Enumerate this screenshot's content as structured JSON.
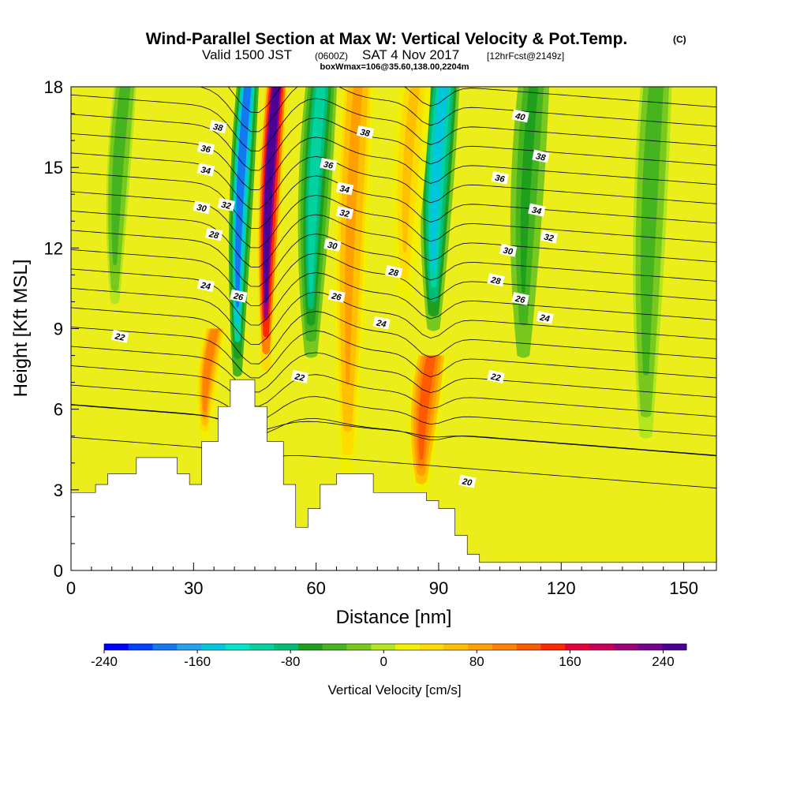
{
  "title": {
    "main": "Wind-Parallel Section at Max W: Vertical Velocity & Pot.Temp.",
    "tag": "(C)",
    "valid_a": "Valid 1500 JST",
    "valid_small1": "(0600Z)",
    "valid_b": "SAT 4 Nov 2017",
    "valid_small2": "[12hrFcst@2149z]",
    "box": "boxWmax=106@35.60,138.00,2204m"
  },
  "colors": {
    "background_field": "#ecee1c",
    "terrain": "#ffffff",
    "contour": "#000000",
    "palette": [
      "#0000ff",
      "#0040ff",
      "#1478f0",
      "#28a0f0",
      "#00c8dc",
      "#00e6c8",
      "#00d2a0",
      "#00be78",
      "#1ea01e",
      "#46b41e",
      "#78c81e",
      "#b4e61e",
      "#f0f000",
      "#ffdc00",
      "#ffc000",
      "#ffa000",
      "#ff8200",
      "#ff5a00",
      "#ff2800",
      "#e6003c",
      "#c8005a",
      "#a00078",
      "#78008c",
      "#4b0096"
    ]
  },
  "chart_data": {
    "type": "heatmap",
    "subtype": "vertical cross-section with contours",
    "xlabel": "Distance [nm]",
    "ylabel": "Height [Kft MSL]",
    "xlim": [
      0,
      158
    ],
    "ylim": [
      0,
      18
    ],
    "xticks": [
      0,
      30,
      60,
      90,
      120,
      150
    ],
    "yticks": [
      0,
      3,
      6,
      9,
      12,
      15,
      18
    ],
    "colorbar": {
      "label": "Vertical Velocity [cm/s]",
      "range": [
        -240,
        260
      ],
      "ticks": [
        -240,
        -160,
        -80,
        0,
        80,
        160,
        240
      ]
    },
    "terrain_profile": [
      [
        0,
        2.9
      ],
      [
        6,
        2.9
      ],
      [
        6,
        3.2
      ],
      [
        9,
        3.2
      ],
      [
        9,
        3.6
      ],
      [
        16,
        3.6
      ],
      [
        16,
        4.2
      ],
      [
        26,
        4.2
      ],
      [
        26,
        3.6
      ],
      [
        29,
        3.6
      ],
      [
        29,
        3.2
      ],
      [
        32,
        3.2
      ],
      [
        32,
        4.8
      ],
      [
        36,
        4.8
      ],
      [
        36,
        6.1
      ],
      [
        39,
        6.1
      ],
      [
        39,
        7.1
      ],
      [
        45,
        7.1
      ],
      [
        45,
        6.1
      ],
      [
        48,
        6.1
      ],
      [
        48,
        4.8
      ],
      [
        52,
        4.8
      ],
      [
        52,
        3.2
      ],
      [
        55,
        3.2
      ],
      [
        55,
        1.6
      ],
      [
        58,
        1.6
      ],
      [
        58,
        2.3
      ],
      [
        61,
        2.3
      ],
      [
        61,
        3.2
      ],
      [
        65,
        3.2
      ],
      [
        65,
        3.6
      ],
      [
        74,
        3.6
      ],
      [
        74,
        2.9
      ],
      [
        87,
        2.9
      ],
      [
        87,
        2.6
      ],
      [
        90,
        2.6
      ],
      [
        90,
        2.3
      ],
      [
        94,
        2.3
      ],
      [
        94,
        1.3
      ],
      [
        97,
        1.3
      ],
      [
        97,
        0.6
      ],
      [
        100,
        0.6
      ],
      [
        100,
        0.3
      ],
      [
        158,
        0.3
      ]
    ],
    "velocity_features": [
      {
        "type": "updraft",
        "x_center": 49,
        "top": 18,
        "bottom": 7.5,
        "peak": 250
      },
      {
        "type": "downdraft",
        "x_center": 42,
        "top": 18,
        "bottom": 7.3,
        "peak": -180
      },
      {
        "type": "updraft",
        "x_center": 34,
        "top": 9,
        "bottom": 5,
        "peak": 110
      },
      {
        "type": "updraft",
        "x_center": 69,
        "top": 18,
        "bottom": 3.5,
        "peak": 90
      },
      {
        "type": "downdraft",
        "x_center": 60,
        "top": 18,
        "bottom": 8,
        "peak": -100
      },
      {
        "type": "downdraft",
        "x_center": 90,
        "top": 18,
        "bottom": 9,
        "peak": -140
      },
      {
        "type": "updraft",
        "x_center": 87,
        "top": 8,
        "bottom": 3,
        "peak": 130
      },
      {
        "type": "updraft",
        "x_center": 83,
        "top": 18,
        "bottom": 10,
        "peak": 60
      },
      {
        "type": "downdraft",
        "x_center": 12,
        "top": 18,
        "bottom": 10,
        "peak": -40
      },
      {
        "type": "downdraft",
        "x_center": 112,
        "top": 18,
        "bottom": 8,
        "peak": -60
      },
      {
        "type": "downdraft",
        "x_center": 142,
        "top": 18,
        "bottom": 5,
        "peak": -40
      }
    ],
    "contour_labels": [
      {
        "text": "40",
        "x": 110,
        "y": 16.9
      },
      {
        "text": "38",
        "x": 72,
        "y": 16.3
      },
      {
        "text": "38",
        "x": 115,
        "y": 15.4
      },
      {
        "text": "38",
        "x": 36,
        "y": 16.5
      },
      {
        "text": "36",
        "x": 33,
        "y": 15.7
      },
      {
        "text": "36",
        "x": 63,
        "y": 15.1
      },
      {
        "text": "36",
        "x": 105,
        "y": 14.6
      },
      {
        "text": "34",
        "x": 33,
        "y": 14.9
      },
      {
        "text": "34",
        "x": 67,
        "y": 14.2
      },
      {
        "text": "34",
        "x": 114,
        "y": 13.4
      },
      {
        "text": "32",
        "x": 38,
        "y": 13.6
      },
      {
        "text": "32",
        "x": 67,
        "y": 13.3
      },
      {
        "text": "32",
        "x": 117,
        "y": 12.4
      },
      {
        "text": "30",
        "x": 32,
        "y": 13.5
      },
      {
        "text": "30",
        "x": 64,
        "y": 12.1
      },
      {
        "text": "30",
        "x": 107,
        "y": 11.9
      },
      {
        "text": "28",
        "x": 35,
        "y": 12.5
      },
      {
        "text": "28",
        "x": 79,
        "y": 11.1
      },
      {
        "text": "28",
        "x": 104,
        "y": 10.8
      },
      {
        "text": "26",
        "x": 41,
        "y": 10.2
      },
      {
        "text": "26",
        "x": 65,
        "y": 10.2
      },
      {
        "text": "26",
        "x": 110,
        "y": 10.1
      },
      {
        "text": "24",
        "x": 33,
        "y": 10.6
      },
      {
        "text": "24",
        "x": 76,
        "y": 9.2
      },
      {
        "text": "24",
        "x": 116,
        "y": 9.4
      },
      {
        "text": "22",
        "x": 12,
        "y": 8.7
      },
      {
        "text": "22",
        "x": 56,
        "y": 7.2
      },
      {
        "text": "22",
        "x": 104,
        "y": 7.2
      },
      {
        "text": "20",
        "x": 97,
        "y": 3.3
      }
    ],
    "contour_levels": [
      20,
      21,
      22,
      23,
      24,
      25,
      26,
      27,
      28,
      29,
      30,
      31,
      32,
      33,
      34,
      35,
      36,
      37,
      38,
      39,
      40
    ]
  }
}
